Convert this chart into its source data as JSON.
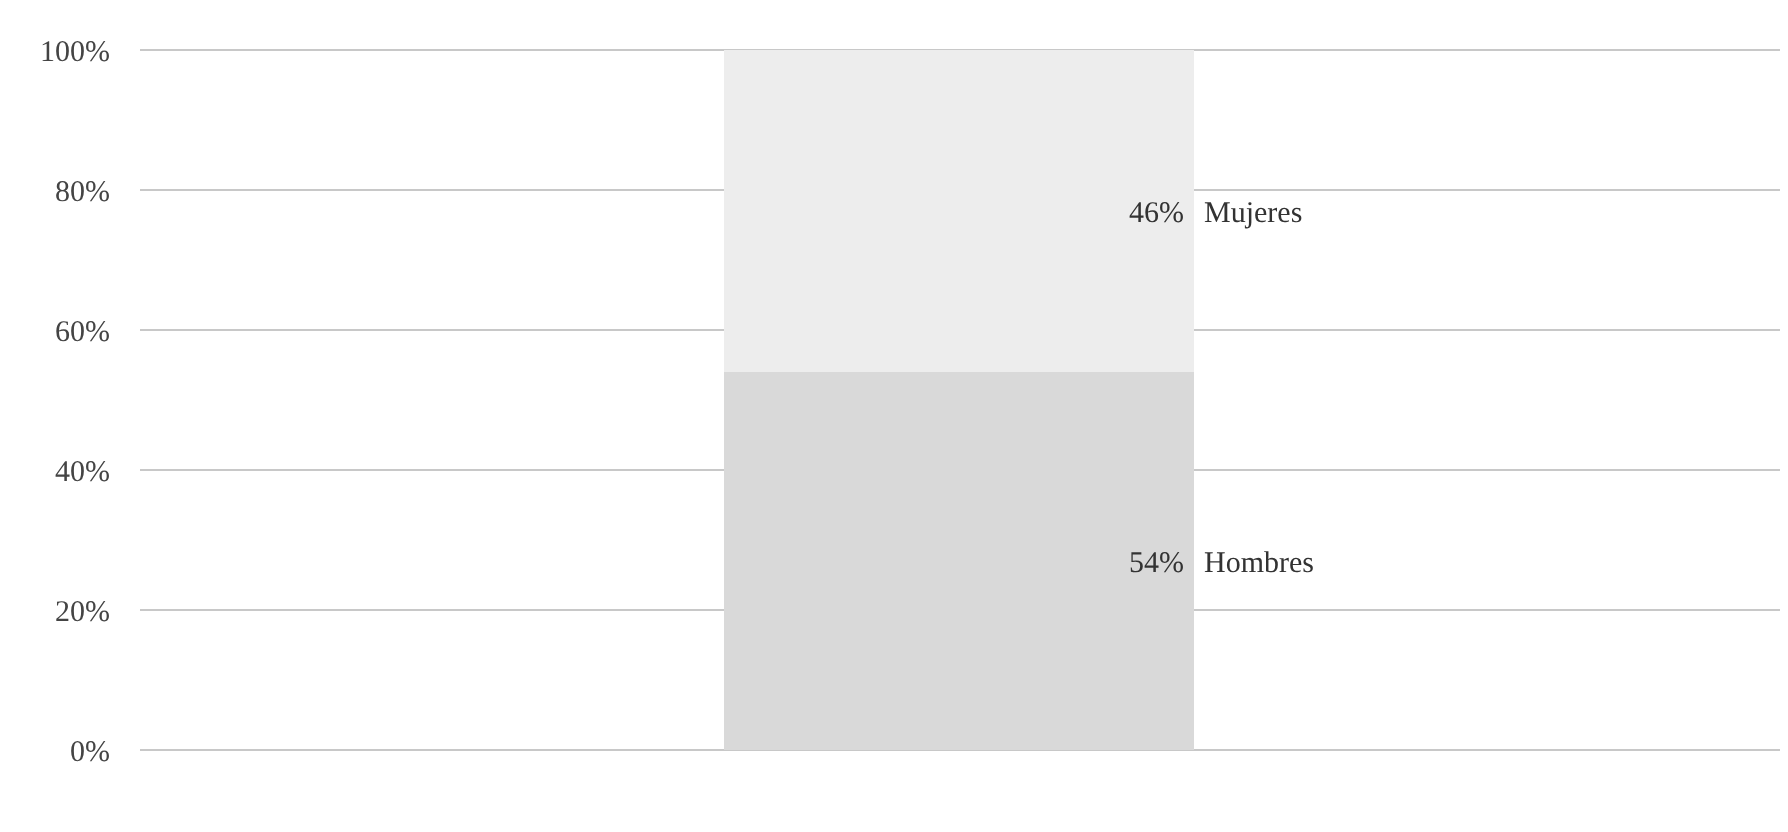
{
  "chart_data": {
    "type": "bar",
    "stacked": true,
    "categories": [
      null
    ],
    "series": [
      {
        "name": "Hombres",
        "color": "#d9d9d9",
        "values": [
          54
        ],
        "value_labels": [
          "54%"
        ]
      },
      {
        "name": "Mujeres",
        "color": "#ededed",
        "values": [
          46
        ],
        "value_labels": [
          "46%"
        ]
      }
    ],
    "ylim": [
      0,
      100
    ],
    "yticks": [
      {
        "value": 0,
        "label": "0%"
      },
      {
        "value": 20,
        "label": "20%"
      },
      {
        "value": 40,
        "label": "40%"
      },
      {
        "value": 60,
        "label": "60%"
      },
      {
        "value": 80,
        "label": "80%"
      },
      {
        "value": 100,
        "label": "100%"
      }
    ],
    "grid": "y"
  }
}
